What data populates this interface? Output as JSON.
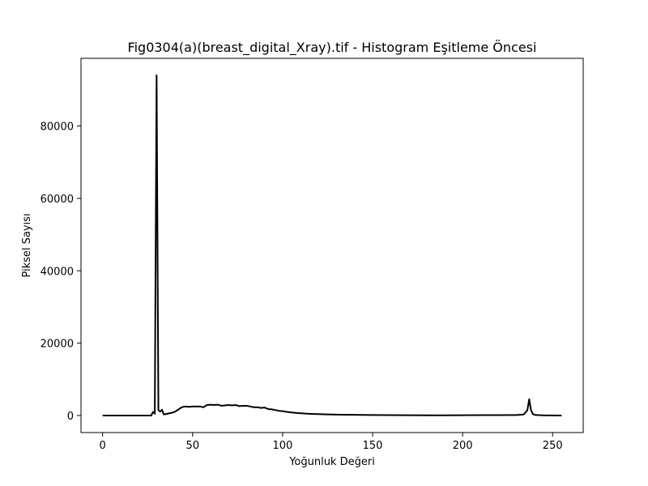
{
  "chart_data": {
    "type": "line",
    "title": "Fig0304(a)(breast_digital_Xray).tif - Histogram Eşitleme Öncesi",
    "xlabel": "Yoğunluk Değeri",
    "ylabel": "Piksel Sayısı",
    "xlim": [
      -12,
      267
    ],
    "ylim": [
      -4700,
      98700
    ],
    "xticks": [
      0,
      50,
      100,
      150,
      200,
      250
    ],
    "yticks": [
      0,
      20000,
      40000,
      60000,
      80000
    ],
    "grid": false,
    "legend": "none",
    "line_color": "#000000",
    "series": [
      {
        "x": [
          0,
          5,
          10,
          15,
          20,
          25,
          27,
          28,
          29,
          30,
          31,
          32,
          33,
          34,
          35,
          36,
          38,
          40,
          42,
          44,
          46,
          48,
          50,
          52,
          54,
          56,
          58,
          60,
          62,
          64,
          66,
          68,
          70,
          72,
          74,
          76,
          78,
          80,
          82,
          84,
          86,
          88,
          90,
          92,
          94,
          96,
          98,
          100,
          104,
          108,
          112,
          116,
          120,
          125,
          130,
          140,
          150,
          160,
          170,
          180,
          190,
          200,
          210,
          220,
          230,
          234,
          236,
          237,
          238,
          239,
          240,
          242,
          245,
          250,
          255
        ],
        "values": [
          0,
          0,
          0,
          0,
          0,
          0,
          0,
          1000,
          500,
          94000,
          1500,
          1100,
          1600,
          300,
          400,
          500,
          700,
          1000,
          1600,
          2300,
          2500,
          2400,
          2500,
          2500,
          2500,
          2300,
          2900,
          3000,
          2900,
          3000,
          2700,
          2800,
          2900,
          2800,
          2900,
          2600,
          2700,
          2700,
          2500,
          2300,
          2300,
          2100,
          2200,
          1800,
          1700,
          1500,
          1300,
          1200,
          900,
          700,
          550,
          450,
          380,
          300,
          250,
          200,
          150,
          100,
          80,
          60,
          50,
          80,
          100,
          120,
          150,
          300,
          1500,
          4500,
          1500,
          400,
          200,
          100,
          50,
          20,
          0
        ]
      }
    ]
  }
}
